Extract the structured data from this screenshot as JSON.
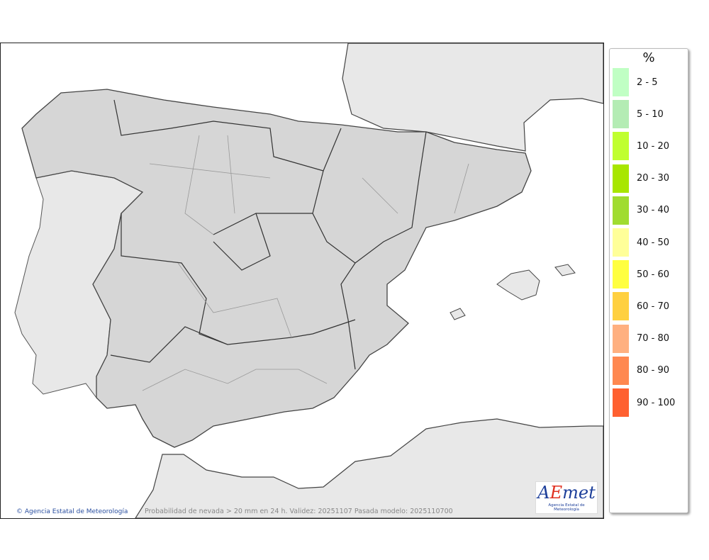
{
  "map": {
    "caption": "Probabilidad de nevada > 20 mm en 24 h. Validez: 20251107 Pasada modelo: 2025110700",
    "credit": "Agencia Estatal de Meteorología",
    "credit_icon": "copyright-icon",
    "logo_text": "AEMet",
    "logo_subtext": "Agencia Estatal de Meteorología"
  },
  "legend": {
    "title": "%",
    "items": [
      {
        "label": "2 - 5",
        "color": "#c0ffc4"
      },
      {
        "label": "5 - 10",
        "color": "#b4ecb4"
      },
      {
        "label": "10 - 20",
        "color": "#c0ff30"
      },
      {
        "label": "20 - 30",
        "color": "#a8e600"
      },
      {
        "label": "30 - 40",
        "color": "#a0dc30"
      },
      {
        "label": "40 - 50",
        "color": "#ffff99"
      },
      {
        "label": "50 - 60",
        "color": "#ffff40"
      },
      {
        "label": "60 - 70",
        "color": "#ffd040"
      },
      {
        "label": "70 - 80",
        "color": "#ffb080"
      },
      {
        "label": "80 - 90",
        "color": "#ff8850"
      },
      {
        "label": "90 - 100",
        "color": "#ff6030"
      }
    ]
  }
}
